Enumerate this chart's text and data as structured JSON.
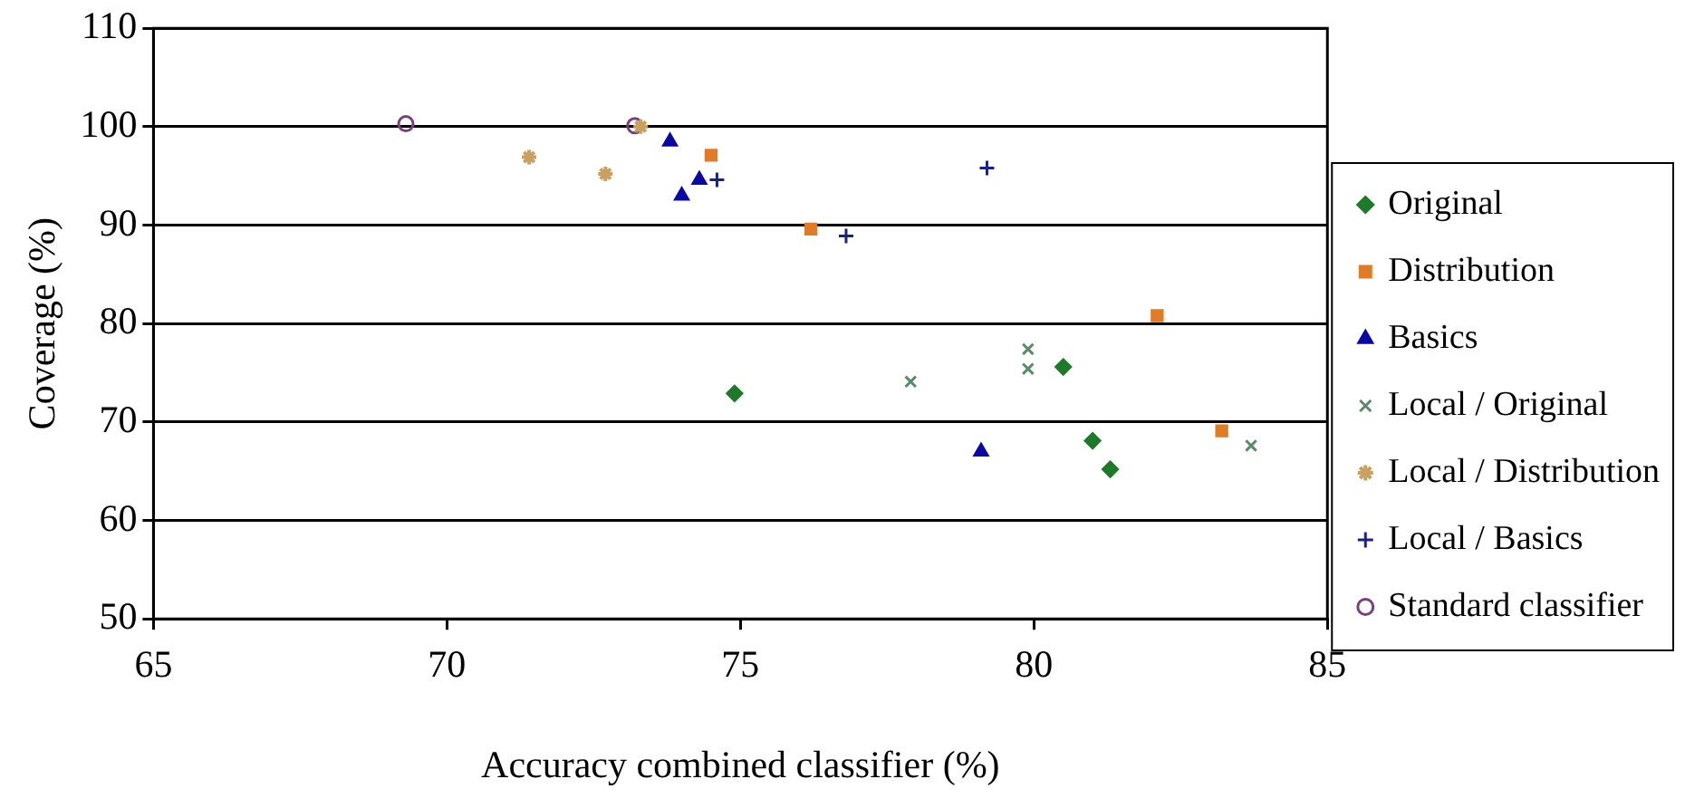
{
  "chart_data": {
    "type": "scatter",
    "xlabel": "Accuracy combined classifier (%)",
    "ylabel": "Coverage (%)",
    "xlim": [
      65,
      85
    ],
    "xticks": [
      65,
      70,
      75,
      80,
      85
    ],
    "ylim": [
      50,
      110
    ],
    "yticks": [
      50,
      60,
      70,
      80,
      90,
      100,
      110
    ],
    "grid": "y",
    "legend": "right",
    "series": [
      {
        "name": "Original",
        "color": "#1e7a2a",
        "marker": "diamond",
        "x": [
          74.9,
          80.5,
          81.0,
          81.3
        ],
        "values": [
          72.9,
          75.6,
          68.1,
          65.2
        ]
      },
      {
        "name": "Distribution",
        "color": "#e07b28",
        "marker": "square",
        "x": [
          74.5,
          76.2,
          82.1,
          83.2
        ],
        "values": [
          97.1,
          89.6,
          80.8,
          69.1
        ]
      },
      {
        "name": "Basics",
        "color": "#0a0aa0",
        "marker": "triangle",
        "x": [
          73.8,
          74.3,
          74.0,
          79.1
        ],
        "values": [
          98.5,
          94.6,
          93.0,
          67.0
        ]
      },
      {
        "name": "Local / Original",
        "color": "#5a8a6a",
        "marker": "x",
        "x": [
          79.9,
          79.9,
          77.9,
          83.7
        ],
        "values": [
          77.4,
          75.4,
          74.1,
          67.6
        ]
      },
      {
        "name": "Local / Distribution",
        "color": "#c8a060",
        "marker": "cross",
        "x": [
          71.4,
          72.7,
          73.3
        ],
        "values": [
          96.9,
          95.2,
          100.0
        ]
      },
      {
        "name": "Local / Basics",
        "color": "#1a237e",
        "marker": "plus",
        "x": [
          74.6,
          76.8,
          79.2
        ],
        "values": [
          94.6,
          88.9,
          95.8
        ]
      },
      {
        "name": "Standard classifier",
        "color": "#7b3f7b",
        "marker": "circle",
        "x": [
          69.3,
          73.2
        ],
        "values": [
          100.3,
          100.1
        ]
      }
    ]
  }
}
